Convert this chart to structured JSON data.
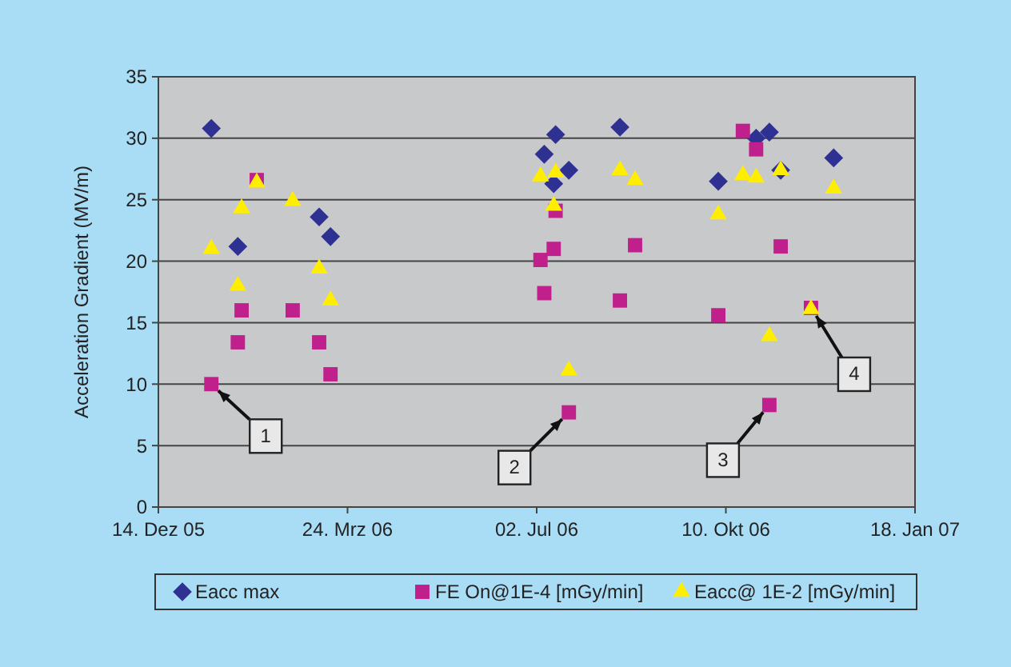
{
  "chart_data": {
    "type": "scatter",
    "ylabel": "Acceleration Gradient (MV/m)",
    "xlim": [
      "2005-12-14",
      "2007-01-18"
    ],
    "xticks": [
      {
        "value": "2005-12-14",
        "label": "14. Dez 05"
      },
      {
        "value": "2006-03-24",
        "label": "24. Mrz 06"
      },
      {
        "value": "2006-07-02",
        "label": "02. Jul 06"
      },
      {
        "value": "2006-10-10",
        "label": "10. Okt 06"
      },
      {
        "value": "2007-01-18",
        "label": "18. Jan 07"
      }
    ],
    "ylim": [
      0,
      35
    ],
    "yticks": [
      0,
      5,
      10,
      15,
      20,
      25,
      30,
      35
    ],
    "grid": "y",
    "legend": "bottom",
    "series": [
      {
        "name": "Eacc max",
        "color": "#2e3192",
        "marker": "diamond",
        "x": [
          "2006-01-11",
          "2006-01-25",
          "2006-03-09",
          "2006-03-15",
          "2006-07-06",
          "2006-07-11",
          "2006-07-12",
          "2006-07-19",
          "2006-08-15",
          "2006-10-06",
          "2006-10-26",
          "2006-11-02",
          "2006-11-08",
          "2006-12-06"
        ],
        "values": [
          30.8,
          21.2,
          23.6,
          22.0,
          28.7,
          26.3,
          30.3,
          27.4,
          30.9,
          26.5,
          30.0,
          30.5,
          27.4,
          28.4
        ]
      },
      {
        "name": "FE On@1E-4 [mGy/min]",
        "color": "#c0208c",
        "marker": "square",
        "x": [
          "2006-01-11",
          "2006-01-25",
          "2006-01-27",
          "2006-02-04",
          "2006-02-23",
          "2006-03-09",
          "2006-03-15",
          "2006-07-04",
          "2006-07-06",
          "2006-07-11",
          "2006-07-12",
          "2006-07-19",
          "2006-08-15",
          "2006-08-23",
          "2006-10-06",
          "2006-10-19",
          "2006-10-26",
          "2006-11-02",
          "2006-11-08",
          "2006-11-24"
        ],
        "values": [
          10.0,
          13.4,
          16.0,
          26.6,
          16.0,
          13.4,
          10.8,
          20.1,
          17.4,
          21.0,
          24.1,
          7.7,
          16.8,
          21.3,
          15.6,
          30.6,
          29.1,
          8.3,
          21.2,
          16.2
        ]
      },
      {
        "name": "Eacc@ 1E-2 [mGy/min]",
        "color": "#ffee00",
        "marker": "triangle",
        "x": [
          "2006-01-11",
          "2006-01-25",
          "2006-01-27",
          "2006-02-04",
          "2006-02-23",
          "2006-03-09",
          "2006-03-15",
          "2006-07-04",
          "2006-07-11",
          "2006-07-12",
          "2006-07-19",
          "2006-08-15",
          "2006-08-23",
          "2006-10-06",
          "2006-10-19",
          "2006-10-26",
          "2006-11-02",
          "2006-11-08",
          "2006-11-24",
          "2006-12-06"
        ],
        "values": [
          21.0,
          18.0,
          24.3,
          26.4,
          24.9,
          19.4,
          16.8,
          26.9,
          24.5,
          27.2,
          11.1,
          27.4,
          26.6,
          23.8,
          27.0,
          26.8,
          13.9,
          27.4,
          16.1,
          25.9
        ]
      }
    ],
    "annotations": [
      {
        "text": "1",
        "x": "2006-01-11",
        "y": 10.0
      },
      {
        "text": "2",
        "x": "2006-07-19",
        "y": 7.7
      },
      {
        "text": "3",
        "x": "2006-11-02",
        "y": 8.3
      },
      {
        "text": "4",
        "x": "2006-11-24",
        "y": 16.2
      }
    ]
  }
}
